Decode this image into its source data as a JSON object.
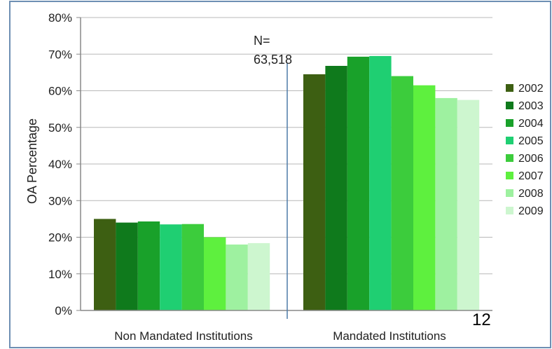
{
  "chart_data": {
    "type": "bar",
    "ylabel": "OA Percentage",
    "ylim": [
      0,
      80
    ],
    "yticks": [
      "0%",
      "10%",
      "20%",
      "30%",
      "40%",
      "50%",
      "60%",
      "70%",
      "80%"
    ],
    "grid": true,
    "legend_position": "right",
    "categories": [
      "Non Mandated Institutions",
      "Mandated Institutions"
    ],
    "series": [
      {
        "name": "2002",
        "color": "#3d5f12",
        "values": [
          25.0,
          64.5
        ]
      },
      {
        "name": "2003",
        "color": "#0f7a1c",
        "values": [
          24.0,
          66.8
        ]
      },
      {
        "name": "2004",
        "color": "#19a12a",
        "values": [
          24.3,
          69.3
        ]
      },
      {
        "name": "2005",
        "color": "#1fcf72",
        "values": [
          23.5,
          69.5
        ]
      },
      {
        "name": "2006",
        "color": "#3ccc3c",
        "values": [
          23.6,
          64.0
        ]
      },
      {
        "name": "2007",
        "color": "#5ef03e",
        "values": [
          20.0,
          61.5
        ]
      },
      {
        "name": "2008",
        "color": "#9ef1a0",
        "values": [
          18.0,
          58.0
        ]
      },
      {
        "name": "2009",
        "color": "#cdf6cf",
        "values": [
          18.4,
          57.5
        ]
      }
    ],
    "annotation": {
      "line1": "N=",
      "line2": "63,518"
    }
  },
  "page_number": "12"
}
